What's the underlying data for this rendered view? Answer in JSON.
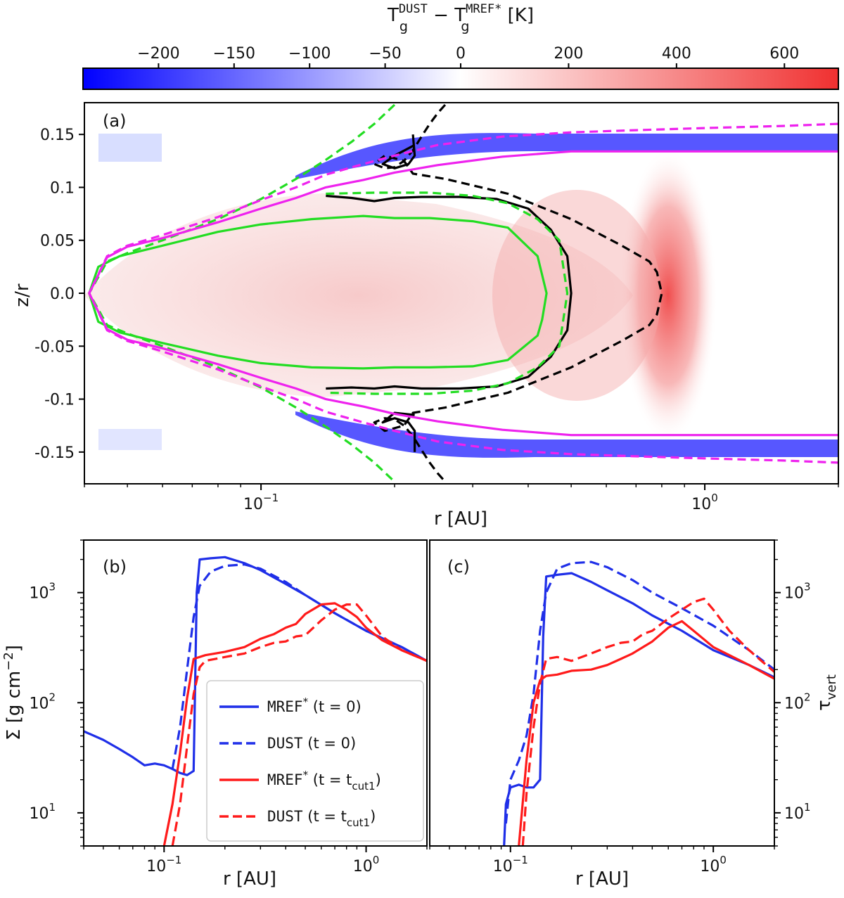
{
  "chart_data": [
    {
      "type": "colorbar",
      "title": "T_g^DUST − T_g^MREF* [K]",
      "title_main": "T",
      "title_sub1": "g",
      "title_sup1": "DUST",
      "title_minus": " − ",
      "title_sub2": "g",
      "title_sup2": "MREF*",
      "title_unit": " [K]",
      "tick_labels": [
        "−200",
        "−150",
        "−100",
        "−50",
        "0",
        "200",
        "400",
        "600"
      ],
      "tick_values": [
        -200,
        -150,
        -100,
        -50,
        0,
        200,
        400,
        600
      ],
      "colors": {
        "negative": "#0000ff",
        "zero": "#ffffff",
        "positive": "#f03030"
      }
    },
    {
      "type": "heatmap",
      "panel_label": "(a)",
      "xlabel": "r [AU]",
      "ylabel": "z/r",
      "xscale": "log",
      "xlim": [
        0.04,
        2.0
      ],
      "ylim": [
        -0.18,
        0.18
      ],
      "x_tick_labels": [
        {
          "value": 0.1,
          "base": "10",
          "exp": "−1"
        },
        {
          "value": 1,
          "base": "10",
          "exp": "0"
        }
      ],
      "y_tick_labels": [
        "0.15",
        "0.1",
        "0.05",
        "0.0",
        "-0.05",
        "-0.1",
        "-0.15"
      ],
      "y_tick_values": [
        0.15,
        0.1,
        0.05,
        0.0,
        -0.05,
        -0.1,
        -0.15
      ],
      "contours": [
        {
          "name": "green-solid",
          "color": "#22dd22",
          "style": "solid",
          "r": [
            0.041,
            0.043,
            0.048,
            0.06,
            0.08,
            0.1,
            0.13,
            0.17,
            0.2,
            0.24,
            0.3,
            0.36,
            0.42,
            0.44,
            0.43,
            0.42,
            0.36,
            0.3,
            0.24,
            0.2,
            0.17,
            0.13,
            0.1,
            0.08,
            0.06,
            0.048,
            0.043,
            0.041
          ],
          "z": [
            0.0,
            0.025,
            0.035,
            0.045,
            0.058,
            0.065,
            0.07,
            0.073,
            0.071,
            0.071,
            0.068,
            0.062,
            0.035,
            0.0,
            -0.025,
            -0.04,
            -0.063,
            -0.069,
            -0.07,
            -0.07,
            -0.071,
            -0.07,
            -0.066,
            -0.059,
            -0.047,
            -0.037,
            -0.027,
            0.0
          ]
        },
        {
          "name": "black-solid",
          "color": "#000000",
          "style": "solid",
          "r": [
            0.14,
            0.16,
            0.18,
            0.2,
            0.23,
            0.28,
            0.34,
            0.4,
            0.45,
            0.49,
            0.5,
            0.49,
            0.45,
            0.4,
            0.34,
            0.28,
            0.23,
            0.2,
            0.18,
            0.16,
            0.14
          ],
          "z": [
            0.092,
            0.09,
            0.087,
            0.09,
            0.091,
            0.091,
            0.089,
            0.08,
            0.06,
            0.035,
            0.0,
            -0.035,
            -0.06,
            -0.079,
            -0.088,
            -0.09,
            -0.09,
            -0.088,
            -0.09,
            -0.089,
            -0.09
          ]
        },
        {
          "name": "black-solid-upper-hook",
          "color": "#000000",
          "style": "solid",
          "r": [
            0.22,
            0.222,
            0.215,
            0.2,
            0.188,
            0.2,
            0.222
          ],
          "z": [
            0.15,
            0.13,
            0.122,
            0.118,
            0.122,
            0.13,
            0.14
          ]
        },
        {
          "name": "black-solid-lower-hook",
          "color": "#000000",
          "style": "solid",
          "r": [
            0.222,
            0.222,
            0.215,
            0.2,
            0.188,
            0.2,
            0.222
          ],
          "z": [
            -0.15,
            -0.13,
            -0.122,
            -0.118,
            -0.122,
            -0.113,
            -0.115
          ]
        },
        {
          "name": "black-dashed",
          "color": "#000000",
          "style": "dashed",
          "r": [
            0.26,
            0.25,
            0.24,
            0.23,
            0.22,
            0.21,
            0.2,
            0.19,
            0.18,
            0.19,
            0.21,
            0.22,
            0.26,
            0.36,
            0.5,
            0.65,
            0.75,
            0.78,
            0.8,
            0.78,
            0.75,
            0.65,
            0.5,
            0.36,
            0.26,
            0.22,
            0.21,
            0.19,
            0.18,
            0.19,
            0.2,
            0.21,
            0.22,
            0.23,
            0.24,
            0.25,
            0.26
          ],
          "z": [
            0.178,
            0.17,
            0.16,
            0.148,
            0.135,
            0.125,
            0.119,
            0.118,
            0.122,
            0.13,
            0.125,
            0.113,
            0.108,
            0.094,
            0.07,
            0.045,
            0.03,
            0.02,
            0.0,
            -0.02,
            -0.03,
            -0.045,
            -0.07,
            -0.094,
            -0.108,
            -0.113,
            -0.125,
            -0.13,
            -0.122,
            -0.118,
            -0.119,
            -0.125,
            -0.135,
            -0.148,
            -0.16,
            -0.17,
            -0.178
          ]
        },
        {
          "name": "green-dashed",
          "color": "#22dd22",
          "style": "dashed",
          "r": [
            0.2,
            0.18,
            0.16,
            0.14,
            0.12,
            0.1,
            0.08,
            0.06,
            0.05,
            0.045,
            0.041,
            0.045,
            0.05,
            0.06,
            0.08,
            0.1,
            0.12,
            0.14,
            0.16,
            0.18,
            0.2
          ],
          "z": [
            0.178,
            0.16,
            0.143,
            0.126,
            0.108,
            0.089,
            0.07,
            0.05,
            0.038,
            0.03,
            0.0,
            -0.03,
            -0.038,
            -0.05,
            -0.07,
            -0.089,
            -0.108,
            -0.126,
            -0.143,
            -0.16,
            -0.178
          ]
        },
        {
          "name": "green-dashed-inner",
          "color": "#22dd22",
          "style": "dashed",
          "r": [
            0.14,
            0.18,
            0.24,
            0.3,
            0.36,
            0.42,
            0.47,
            0.49,
            0.47,
            0.42,
            0.36,
            0.3,
            0.24,
            0.18,
            0.14
          ],
          "z": [
            0.094,
            0.095,
            0.095,
            0.092,
            0.085,
            0.07,
            0.05,
            0.0,
            -0.05,
            -0.07,
            -0.085,
            -0.092,
            -0.095,
            -0.095,
            -0.094
          ]
        },
        {
          "name": "magenta-solid",
          "color": "#ee22ee",
          "style": "solid",
          "r": [
            2.0,
            1.5,
            1.0,
            0.7,
            0.5,
            0.35,
            0.25,
            0.2,
            0.17,
            0.14,
            0.12,
            0.1,
            0.08,
            0.06,
            0.05,
            0.045,
            0.041,
            0.045,
            0.05,
            0.06,
            0.08,
            0.1,
            0.12,
            0.14,
            0.17,
            0.2,
            0.25,
            0.35,
            0.5,
            0.7,
            1.0,
            1.5,
            2.0
          ],
          "z": [
            0.134,
            0.134,
            0.134,
            0.134,
            0.134,
            0.129,
            0.121,
            0.114,
            0.107,
            0.1,
            0.09,
            0.08,
            0.067,
            0.052,
            0.044,
            0.034,
            0.0,
            -0.034,
            -0.044,
            -0.052,
            -0.067,
            -0.08,
            -0.09,
            -0.1,
            -0.107,
            -0.114,
            -0.121,
            -0.129,
            -0.134,
            -0.134,
            -0.134,
            -0.134,
            -0.134
          ]
        },
        {
          "name": "magenta-dashed",
          "color": "#ee22ee",
          "style": "dashed",
          "r": [
            2.0,
            1.5,
            1.0,
            0.7,
            0.5,
            0.35,
            0.25,
            0.2,
            0.17,
            0.14,
            0.12,
            0.1,
            0.08,
            0.06,
            0.05,
            0.045,
            0.041,
            0.045,
            0.05,
            0.06,
            0.08,
            0.1,
            0.12,
            0.14,
            0.17,
            0.2,
            0.25,
            0.35,
            0.5,
            0.7,
            1.0,
            1.5,
            2.0
          ],
          "z": [
            0.16,
            0.158,
            0.156,
            0.154,
            0.152,
            0.148,
            0.14,
            0.13,
            0.122,
            0.112,
            0.1,
            0.088,
            0.072,
            0.055,
            0.045,
            0.035,
            0.0,
            -0.035,
            -0.045,
            -0.055,
            -0.072,
            -0.088,
            -0.1,
            -0.112,
            -0.122,
            -0.13,
            -0.14,
            -0.148,
            -0.152,
            -0.154,
            -0.156,
            -0.158,
            -0.16
          ]
        }
      ]
    },
    {
      "type": "line",
      "panel_label": "(b)",
      "xlabel": "r [AU]",
      "ylabel": "Σ [g cm⁻²]",
      "ylabel_main": "Σ [g cm",
      "ylabel_sup": "−2",
      "ylabel_end": "]",
      "xscale": "log",
      "yscale": "log",
      "xlim": [
        0.04,
        2.0
      ],
      "ylim": [
        5,
        3000
      ],
      "x_tick_labels": [
        {
          "value": 0.1,
          "base": "10",
          "exp": "−1"
        },
        {
          "value": 1,
          "base": "10",
          "exp": "0"
        }
      ],
      "y_tick_labels": [
        {
          "value": 10,
          "base": "10",
          "exp": "1"
        },
        {
          "value": 100,
          "base": "10",
          "exp": "2"
        },
        {
          "value": 1000,
          "base": "10",
          "exp": "3"
        }
      ],
      "series": [
        {
          "name": "MREF* (t=0)",
          "color": "#1f2fe8",
          "style": "solid",
          "x": [
            0.04,
            0.05,
            0.06,
            0.07,
            0.08,
            0.09,
            0.1,
            0.11,
            0.12,
            0.13,
            0.14,
            0.145,
            0.15,
            0.17,
            0.2,
            0.25,
            0.3,
            0.4,
            0.5,
            0.7,
            1.0,
            1.5,
            2.0
          ],
          "y": [
            55,
            46,
            38,
            32,
            27,
            28,
            27,
            25,
            23,
            22,
            24,
            1000,
            2000,
            2050,
            2100,
            1850,
            1600,
            1200,
            950,
            650,
            450,
            320,
            240
          ]
        },
        {
          "name": "DUST (t=0)",
          "color": "#1f2fe8",
          "style": "dashed",
          "x": [
            0.11,
            0.12,
            0.13,
            0.14,
            0.15,
            0.17,
            0.2,
            0.25,
            0.3,
            0.4,
            0.5,
            0.7,
            1.0,
            1.5,
            2.0
          ],
          "y": [
            25,
            60,
            200,
            600,
            1150,
            1550,
            1750,
            1800,
            1650,
            1250,
            950,
            650,
            450,
            320,
            240
          ]
        },
        {
          "name": "MREF* (t=t_cut1)",
          "color": "#ff1a1a",
          "style": "solid",
          "x": [
            0.1,
            0.11,
            0.12,
            0.13,
            0.14,
            0.16,
            0.2,
            0.25,
            0.3,
            0.35,
            0.4,
            0.45,
            0.5,
            0.6,
            0.7,
            0.8,
            0.9,
            1.0,
            1.2,
            1.5,
            2.0
          ],
          "y": [
            5,
            12,
            35,
            110,
            250,
            270,
            290,
            320,
            380,
            420,
            480,
            520,
            640,
            780,
            800,
            700,
            600,
            480,
            370,
            300,
            240
          ]
        },
        {
          "name": "DUST (t=t_cut1)",
          "color": "#ff1a1a",
          "style": "dashed",
          "x": [
            0.11,
            0.12,
            0.13,
            0.14,
            0.15,
            0.16,
            0.2,
            0.25,
            0.3,
            0.35,
            0.4,
            0.45,
            0.5,
            0.6,
            0.7,
            0.8,
            0.9,
            1.0,
            1.2,
            1.5,
            2.0
          ],
          "y": [
            5,
            12,
            40,
            120,
            210,
            240,
            260,
            280,
            320,
            350,
            360,
            400,
            410,
            560,
            700,
            780,
            780,
            620,
            400,
            300,
            240
          ]
        }
      ],
      "legend": {
        "placement": "lower-right",
        "entries": [
          {
            "text": "MREF",
            "sup": "*",
            "paren": "(t = 0)",
            "sub": "",
            "color": "#1f2fe8",
            "style": "solid"
          },
          {
            "text": "DUST",
            "sup": "",
            "paren": "(t = 0)",
            "sub": "",
            "color": "#1f2fe8",
            "style": "dashed"
          },
          {
            "text": "MREF",
            "sup": "*",
            "paren": "(t = t",
            "sub": "cut1",
            "color": "#ff1a1a",
            "style": "solid"
          },
          {
            "text": "DUST",
            "sup": "",
            "paren": "(t = t",
            "sub": "cut1",
            "color": "#ff1a1a",
            "style": "dashed"
          }
        ]
      }
    },
    {
      "type": "line",
      "panel_label": "(c)",
      "xlabel": "r [AU]",
      "ylabel": "τ_vert",
      "ylabel_main": "τ",
      "ylabel_sub": "vert",
      "xscale": "log",
      "yscale": "log",
      "xlim": [
        0.04,
        2.0
      ],
      "ylim": [
        5,
        3000
      ],
      "x_tick_labels": [
        {
          "value": 0.1,
          "base": "10",
          "exp": "−1"
        },
        {
          "value": 1,
          "base": "10",
          "exp": "0"
        }
      ],
      "y_tick_labels": [
        {
          "value": 10,
          "base": "10",
          "exp": "1"
        },
        {
          "value": 100,
          "base": "10",
          "exp": "2"
        },
        {
          "value": 1000,
          "base": "10",
          "exp": "3"
        }
      ],
      "series": [
        {
          "name": "MREF* (t=0)",
          "color": "#1f2fe8",
          "style": "solid",
          "x": [
            0.093,
            0.095,
            0.1,
            0.11,
            0.12,
            0.13,
            0.14,
            0.145,
            0.15,
            0.17,
            0.2,
            0.25,
            0.3,
            0.4,
            0.5,
            0.7,
            1.0,
            1.5,
            2.0
          ],
          "y": [
            5,
            12,
            17,
            18,
            17,
            17,
            20,
            400,
            1400,
            1450,
            1500,
            1250,
            1050,
            800,
            620,
            450,
            300,
            220,
            170
          ]
        },
        {
          "name": "DUST (t=0)",
          "color": "#1f2fe8",
          "style": "dashed",
          "x": [
            0.095,
            0.1,
            0.11,
            0.12,
            0.13,
            0.14,
            0.15,
            0.17,
            0.2,
            0.25,
            0.3,
            0.4,
            0.5,
            0.7,
            1.0,
            1.5,
            2.0
          ],
          "y": [
            8,
            20,
            30,
            50,
            120,
            450,
            1000,
            1650,
            1850,
            1900,
            1700,
            1300,
            1000,
            720,
            500,
            300,
            200
          ]
        },
        {
          "name": "MREF* (t=t_cut1)",
          "color": "#ff1a1a",
          "style": "solid",
          "x": [
            0.11,
            0.12,
            0.13,
            0.14,
            0.15,
            0.17,
            0.2,
            0.25,
            0.3,
            0.35,
            0.4,
            0.45,
            0.5,
            0.6,
            0.7,
            0.8,
            1.0,
            1.5,
            2.0
          ],
          "y": [
            5,
            30,
            100,
            160,
            175,
            180,
            195,
            200,
            220,
            250,
            280,
            320,
            360,
            480,
            550,
            450,
            320,
            220,
            165
          ]
        },
        {
          "name": "DUST (t=t_cut1)",
          "color": "#ff1a1a",
          "style": "dashed",
          "x": [
            0.115,
            0.12,
            0.13,
            0.14,
            0.15,
            0.17,
            0.2,
            0.25,
            0.3,
            0.35,
            0.4,
            0.45,
            0.5,
            0.6,
            0.7,
            0.8,
            0.9,
            1.0,
            1.2,
            1.5,
            2.0
          ],
          "y": [
            5,
            15,
            60,
            150,
            250,
            260,
            240,
            280,
            320,
            350,
            360,
            420,
            450,
            580,
            700,
            820,
            880,
            700,
            450,
            300,
            190
          ]
        }
      ]
    }
  ]
}
